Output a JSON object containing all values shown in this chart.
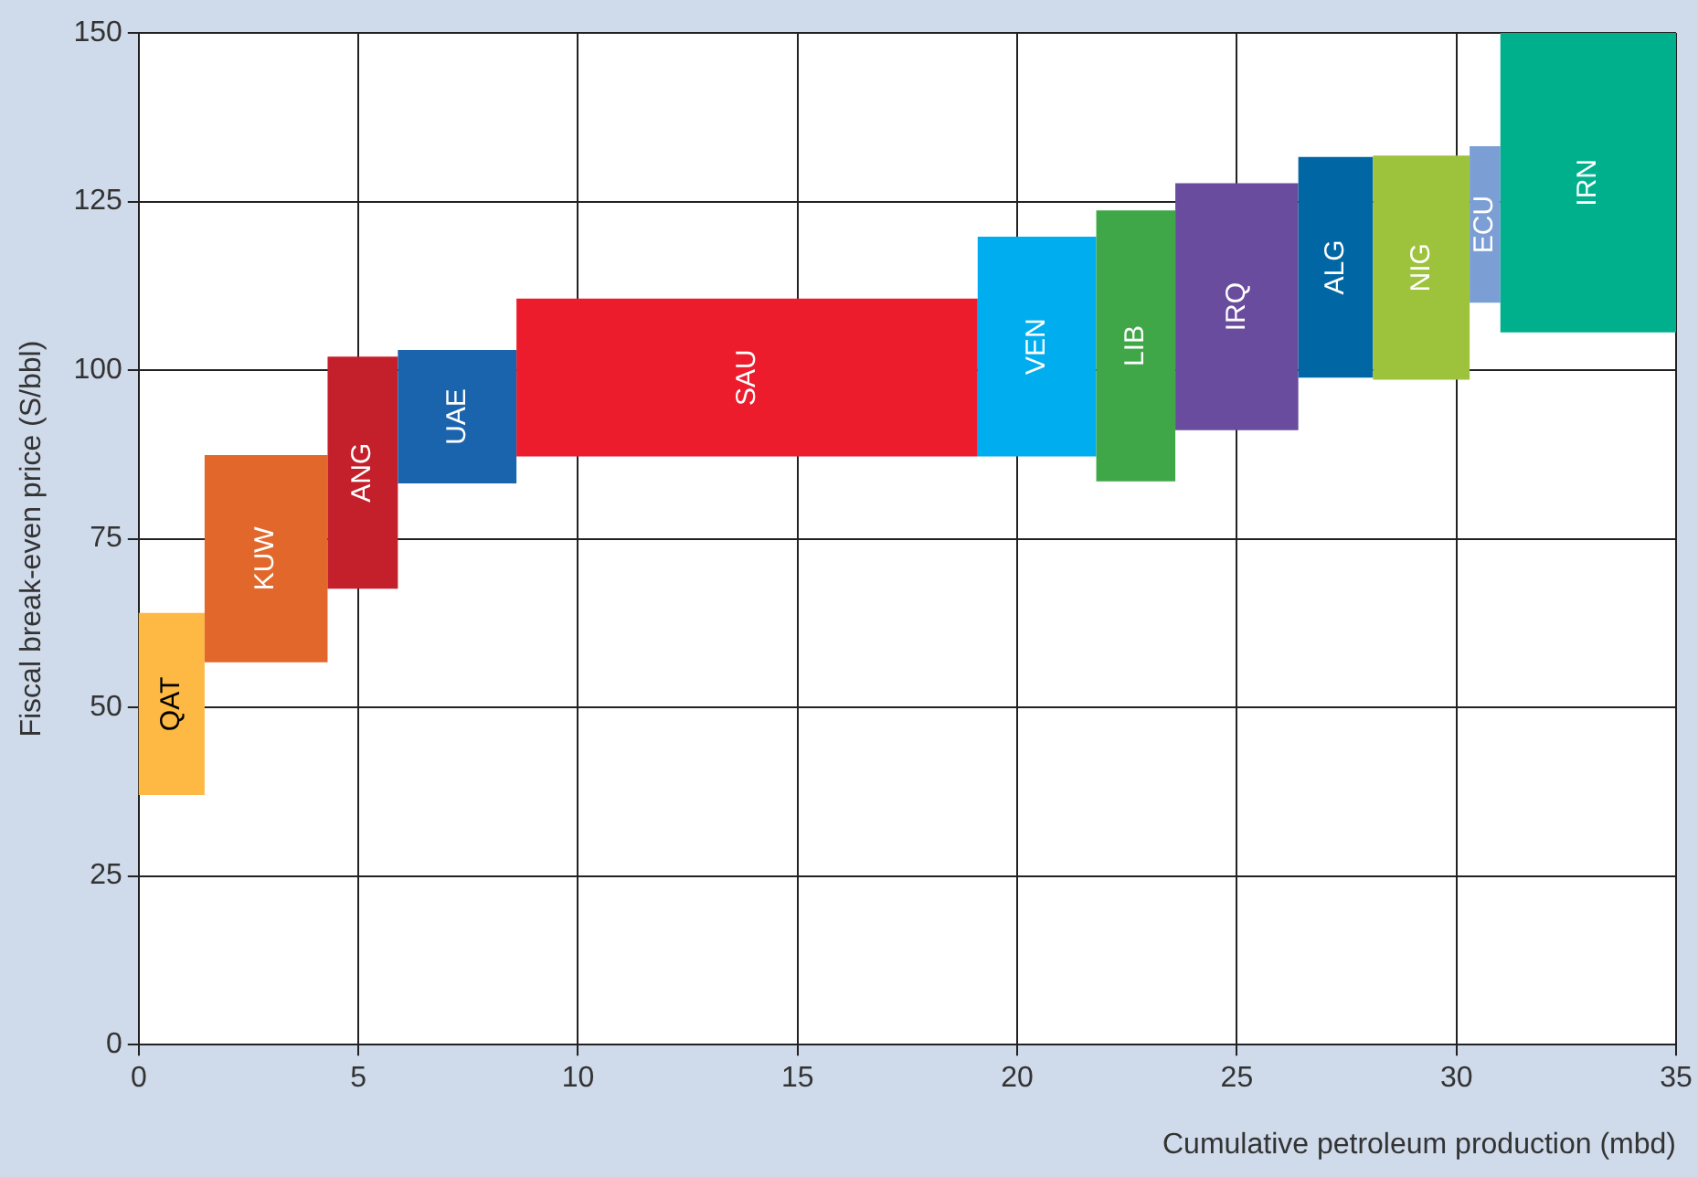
{
  "chart_data": {
    "type": "histogram",
    "xlabel": "Cumulative petroleum production (mbd)",
    "ylabel": "Fiscal break-even price (S/bbl)",
    "bins": [
      0,
      1.5,
      4.3,
      5.9,
      8.6,
      19.1,
      21.8,
      23.6,
      26.4,
      28.1,
      30.3,
      31,
      35
    ],
    "base": [
      37,
      56.7,
      67.6,
      83.2,
      87.2,
      87.2,
      83.5,
      91.1,
      98.9,
      98.6,
      110,
      105.6
    ],
    "values": [
      27,
      30.7,
      34.4,
      19.8,
      23.4,
      32.6,
      40.2,
      36.6,
      32.7,
      33.2,
      23.2,
      44.4
    ],
    "colors": [
      "#fdb944",
      "#e2672a",
      "#c4202b",
      "#1a64ad",
      "#ec1c2d",
      "#00aeef",
      "#3fa748",
      "#6a4c9e",
      "#0066a4",
      "#9dc23b",
      "#7b9fd4",
      "#00b08c"
    ],
    "xlim": [
      0,
      35
    ],
    "xticks": [
      0,
      5,
      10,
      15,
      20,
      25,
      30,
      35
    ],
    "ylim": [
      0,
      150
    ],
    "yticks": [
      0,
      25,
      50,
      75,
      100,
      125,
      150
    ],
    "grid": true,
    "annotations": [
      "QAT",
      "KUW",
      "ANG",
      "UAE",
      "SAU",
      "VEN",
      "LIB",
      "IRQ",
      "ALG",
      "NIG",
      "ECU",
      "IRN"
    ]
  }
}
